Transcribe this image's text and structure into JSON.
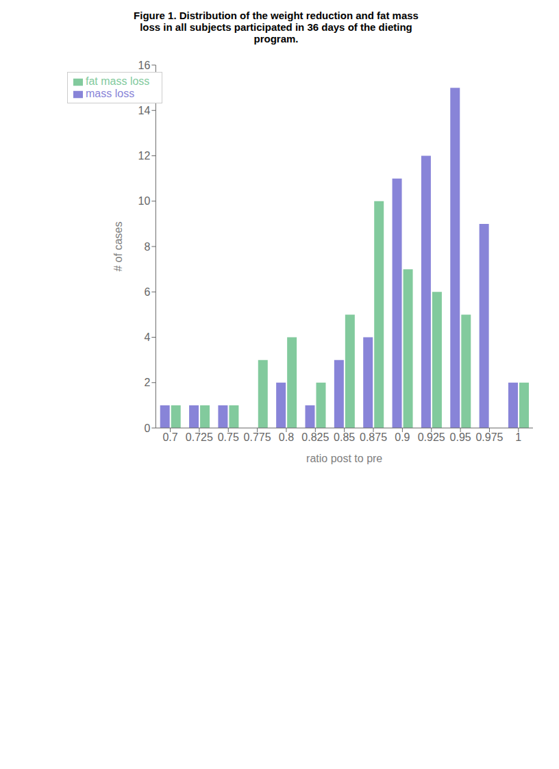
{
  "chart_data": {
    "type": "bar",
    "title": "Figure 1. Distribution of the weight reduction and fat mass\nloss in all subjects participated in 36 days of the dieting\nprogram.",
    "categories": [
      "0.7",
      "0.725",
      "0.75",
      "0.775",
      "0.8",
      "0.825",
      "0.85",
      "0.875",
      "0.9",
      "0.925",
      "0.95",
      "0.975",
      "1"
    ],
    "series": [
      {
        "name": "mass loss",
        "color": "#8884d8",
        "values": [
          1,
          1,
          1,
          0,
          2,
          1,
          3,
          4,
          11,
          12,
          15,
          9,
          2
        ]
      },
      {
        "name": "fat mass loss",
        "color": "#82ca9d",
        "values": [
          1,
          1,
          1,
          3,
          4,
          2,
          5,
          10,
          7,
          6,
          5,
          0,
          2
        ]
      }
    ],
    "xlabel": "ratio post to pre",
    "ylabel": "# of cases",
    "ylim": [
      0,
      16
    ],
    "yticks": [
      0,
      2,
      4,
      6,
      8,
      10,
      12,
      14,
      16
    ],
    "legend": "upper left",
    "grid": false
  }
}
